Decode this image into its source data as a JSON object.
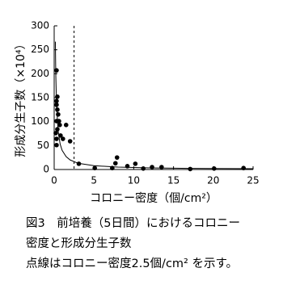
{
  "chart_data": {
    "type": "scatter",
    "ylabel": "形成分生子数（×10⁴）",
    "xlabel": "コロニー密度（個/cm²）",
    "xlim": [
      0,
      25
    ],
    "xticks": [
      0,
      5,
      10,
      15,
      20,
      25
    ],
    "ylim": [
      0,
      300
    ],
    "yticks": [
      0,
      50,
      100,
      150,
      200,
      250,
      300
    ],
    "vline": 2.5,
    "series": [
      {
        "color": "#000000",
        "x": [
          0.3,
          0.4,
          0.3,
          0.3,
          0.4,
          0.5,
          0.3,
          0.6,
          0.7,
          0.4,
          0.2,
          0.8,
          0.3,
          0.3,
          1.1,
          1.5,
          2.0,
          3.1,
          5.1,
          7.3,
          7.9,
          7.7,
          9.2,
          10.2,
          11.2,
          12.3,
          13.5,
          17.1,
          20.1,
          23.8
        ],
        "values": [
          207,
          152,
          143,
          135,
          125,
          115,
          101,
          101,
          93,
          84,
          76,
          71,
          64,
          51,
          64,
          93,
          59,
          12,
          3,
          3,
          25,
          13,
          7,
          12,
          2,
          5,
          5,
          1,
          2,
          3
        ]
      },
      {
        "type": "line",
        "color": "#000000",
        "x": [
          0.15,
          0.2,
          0.3,
          0.5,
          0.75,
          1,
          1.5,
          2,
          3,
          5,
          8,
          12,
          17,
          25
        ],
        "values": [
          267,
          200,
          133,
          80,
          53,
          40,
          27,
          20,
          13,
          8,
          5,
          3.3,
          2.4,
          1.6
        ]
      }
    ]
  },
  "caption": [
    "図3　前培養（5日間）におけるコロニー",
    "密度と形成分生子数",
    "点線はコロニー密度2.5個/cm² を示す。"
  ]
}
